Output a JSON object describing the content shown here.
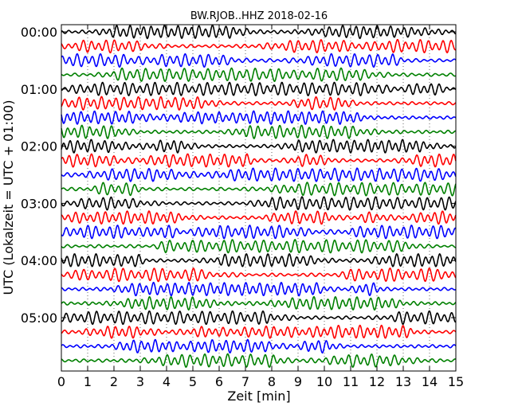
{
  "chart_data": {
    "type": "line",
    "title": "BW.RJOB..HHZ 2018-02-16",
    "xlabel": "Zeit  [min]",
    "ylabel": "UTC (Lokalzeit = UTC + 01:00)",
    "xlim": [
      0,
      15
    ],
    "x_ticks": [
      "0",
      "1",
      "2",
      "3",
      "4",
      "5",
      "6",
      "7",
      "8",
      "9",
      "10",
      "11",
      "12",
      "13",
      "14",
      "15"
    ],
    "y_ticks": [
      "00:00",
      "01:00",
      "02:00",
      "03:00",
      "04:00",
      "05:00"
    ],
    "trace_colors": [
      "#000000",
      "#ff0000",
      "#0000ff",
      "#008000"
    ],
    "traces_per_hour": 4,
    "trace_count": 24,
    "grid": true
  }
}
